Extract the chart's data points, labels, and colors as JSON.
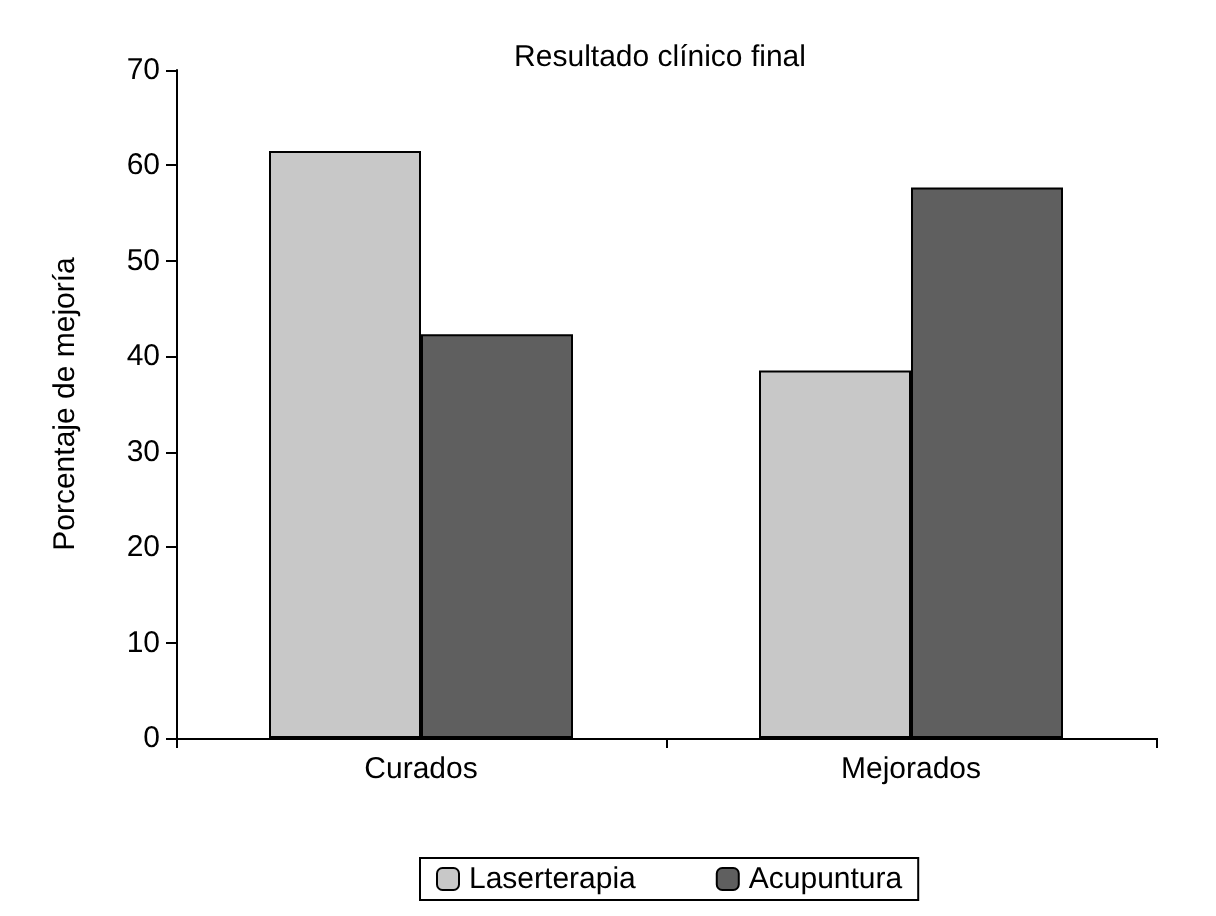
{
  "chart_data": {
    "type": "bar",
    "title": "Resultado clínico final",
    "ylabel": "Porcentaje de mejoría",
    "categories": [
      "Curados",
      "Mejorados"
    ],
    "series": [
      {
        "name": "Laserterapia",
        "color": "#c8c8c8",
        "values": [
          61.5,
          38.5
        ]
      },
      {
        "name": "Acupuntura",
        "color": "#5f5f5f",
        "values": [
          42.3,
          57.7
        ]
      }
    ],
    "ylim": [
      0,
      70
    ],
    "yticks": [
      0,
      10,
      20,
      30,
      40,
      50,
      60,
      70
    ],
    "grid": false,
    "legend": "bottom"
  }
}
